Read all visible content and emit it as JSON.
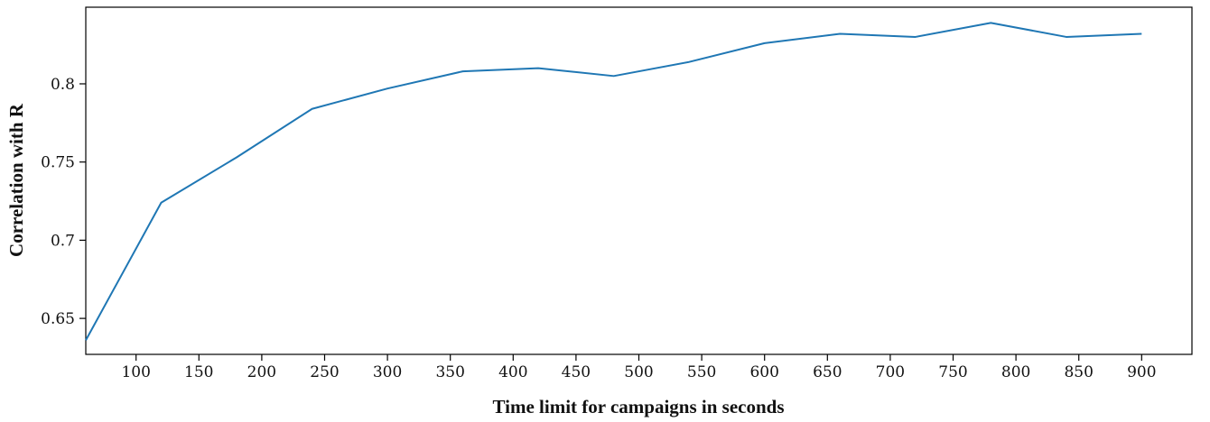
{
  "chart_data": {
    "type": "line",
    "title": "",
    "xlabel": "Time limit for campaigns in seconds",
    "ylabel": "Correlation with R",
    "xlim": [
      60,
      940
    ],
    "ylim": [
      0.627,
      0.849
    ],
    "x_ticks": [
      100,
      150,
      200,
      250,
      300,
      350,
      400,
      450,
      500,
      550,
      600,
      650,
      700,
      750,
      800,
      850,
      900
    ],
    "y_ticks": [
      0.65,
      0.7,
      0.75,
      0.8
    ],
    "y_tick_labels": [
      "0.65",
      "0.7",
      "0.75",
      "0.8"
    ],
    "grid": false,
    "legend": "none",
    "series": [
      {
        "color": "#1f77b4",
        "x": [
          60,
          120,
          180,
          240,
          300,
          360,
          420,
          480,
          540,
          600,
          660,
          720,
          780,
          840,
          900
        ],
        "y": [
          0.636,
          0.724,
          0.753,
          0.784,
          0.797,
          0.808,
          0.81,
          0.805,
          0.814,
          0.826,
          0.832,
          0.83,
          0.839,
          0.83,
          0.832
        ]
      }
    ]
  }
}
